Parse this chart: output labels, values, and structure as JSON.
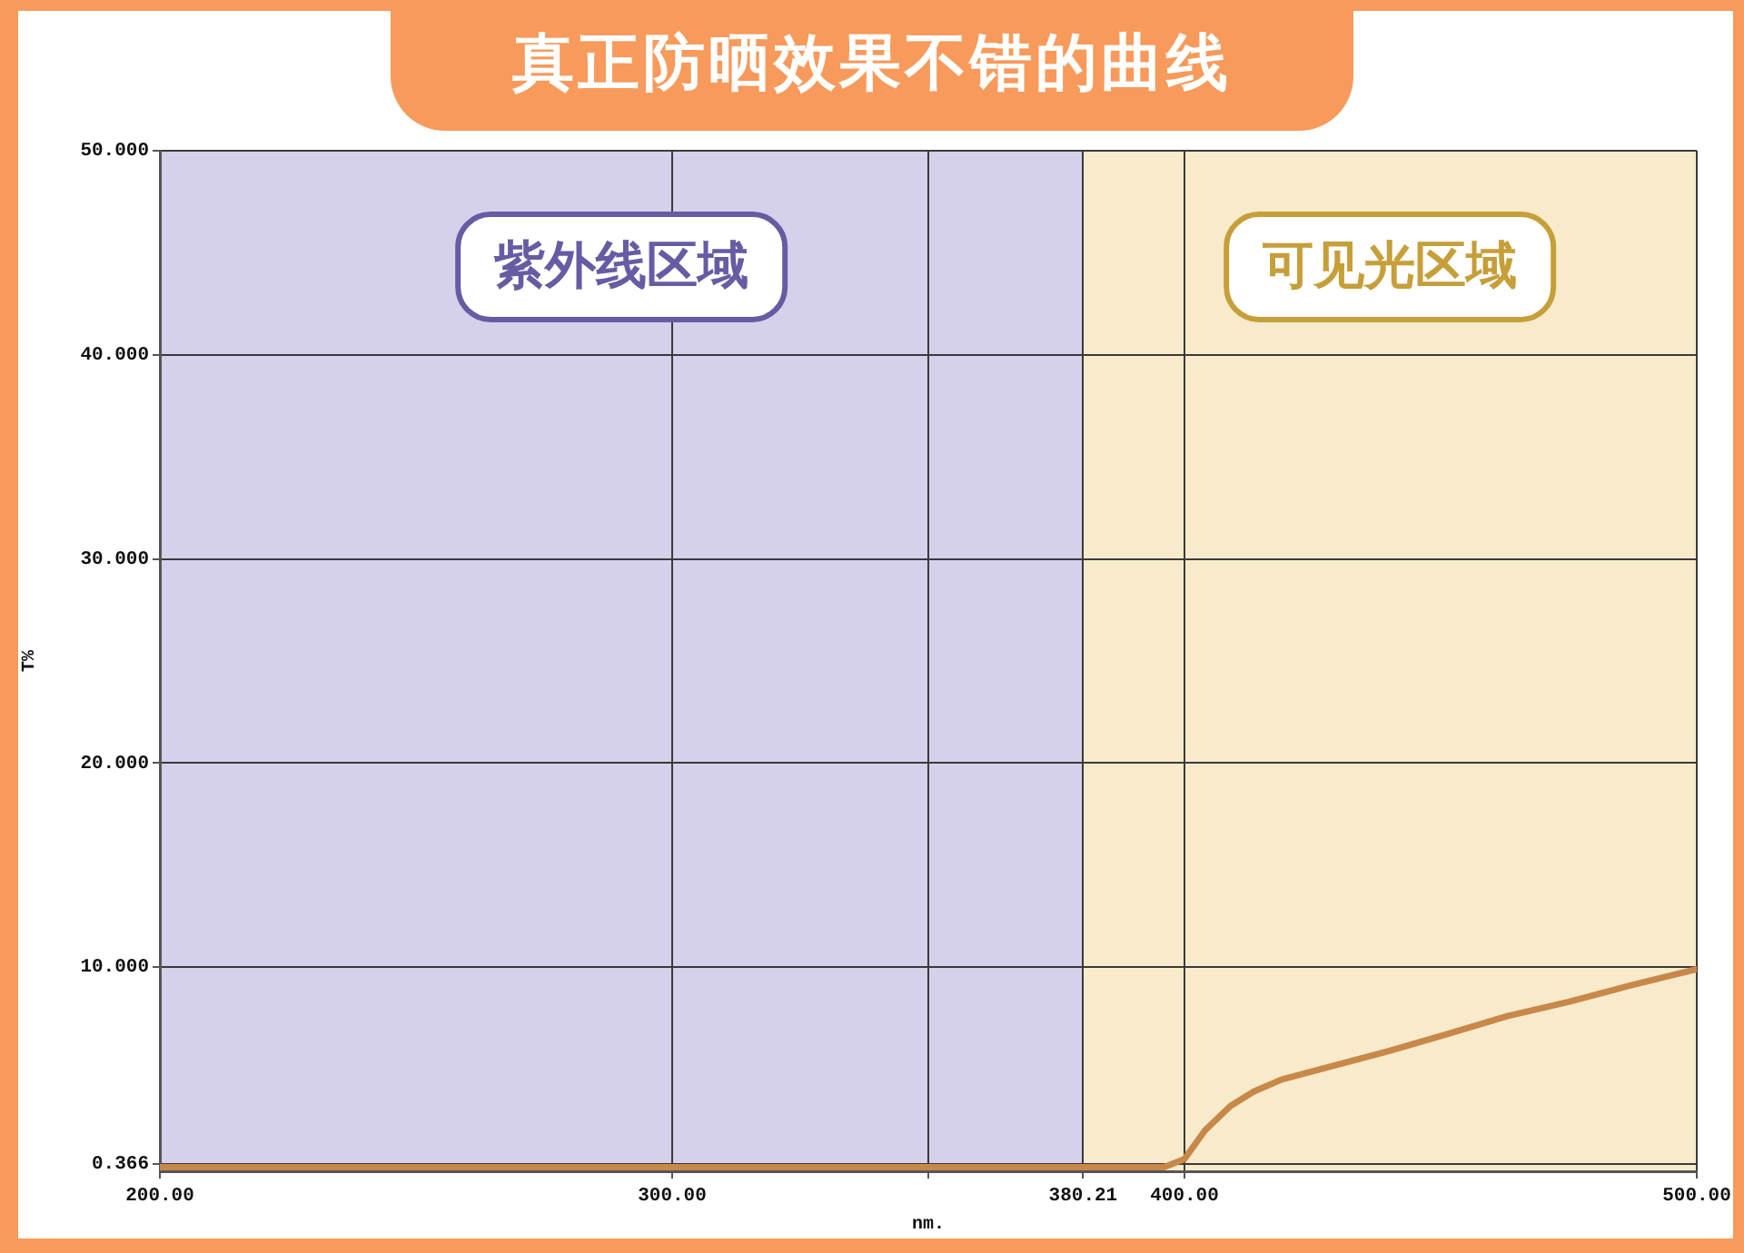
{
  "chart_data": {
    "type": "line",
    "title": "真正防晒效果不错的曲线",
    "xlabel": "nm.",
    "ylabel": "T%",
    "x": [
      200,
      250,
      300,
      350,
      380,
      396,
      400,
      404,
      409,
      413.5,
      419,
      428,
      440,
      451,
      463,
      475,
      487,
      500
    ],
    "values": [
      0.2,
      0.2,
      0.2,
      0.2,
      0.2,
      0.2,
      0.6,
      2.0,
      3.2,
      3.9,
      4.5,
      5.1,
      5.9,
      6.7,
      7.6,
      8.3,
      9.1,
      9.9
    ],
    "color": "#c8884a",
    "xlim": [
      200,
      500
    ],
    "ylim": [
      0,
      50
    ],
    "xticks": [
      {
        "value": 200,
        "label": "200.00"
      },
      {
        "value": 300,
        "label": "300.00"
      },
      {
        "value": 350,
        "label": null
      },
      {
        "value": 380.21,
        "label": "380.21"
      },
      {
        "value": 400,
        "label": "400.00"
      },
      {
        "value": 500,
        "label": "500.00"
      }
    ],
    "yticks": [
      {
        "value": 0.366,
        "label": "0.366"
      },
      {
        "value": 10,
        "label": "10.000"
      },
      {
        "value": 20,
        "label": "20.000"
      },
      {
        "value": 30,
        "label": "30.000"
      },
      {
        "value": 40,
        "label": "40.000"
      },
      {
        "value": 50,
        "label": "50.000"
      }
    ],
    "grid": true,
    "bands": [
      {
        "axis": "x",
        "from": 200,
        "to": 380.21,
        "label": "紫外线区域",
        "color": "#d5d1ea"
      },
      {
        "axis": "x",
        "from": 380.21,
        "to": 500,
        "label": "可见光区域",
        "color": "#f7ebcb"
      }
    ]
  }
}
